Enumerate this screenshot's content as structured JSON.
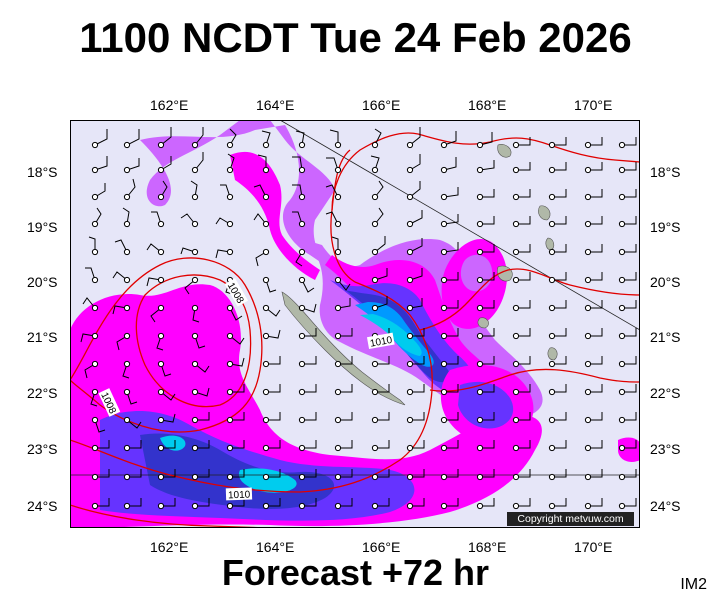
{
  "header": {
    "title": "1100 NCDT Tue 24 Feb 2026"
  },
  "footer": {
    "forecast": "Forecast +72 hr",
    "model": "IM2"
  },
  "axes": {
    "lon_labels": [
      "162°E",
      "164°E",
      "166°E",
      "168°E",
      "170°E"
    ],
    "lat_labels": [
      "18°S",
      "19°S",
      "20°S",
      "21°S",
      "22°S",
      "23°S",
      "24°S"
    ]
  },
  "isobars": {
    "labels": [
      "1008",
      "1008",
      "1010",
      "1010"
    ],
    "color": "#e00000"
  },
  "copyright": "Copyright metvuw.com",
  "colors": {
    "background": "#e6e6f8",
    "rain_light": "#cc66ff",
    "rain_medium": "#ff00ff",
    "rain_heavy_1": "#6633ff",
    "rain_heavy_2": "#3333cc",
    "rain_heavy_3": "#0099ff",
    "rain_heavy_4": "#00ccee",
    "land": "#b0b8a8"
  }
}
